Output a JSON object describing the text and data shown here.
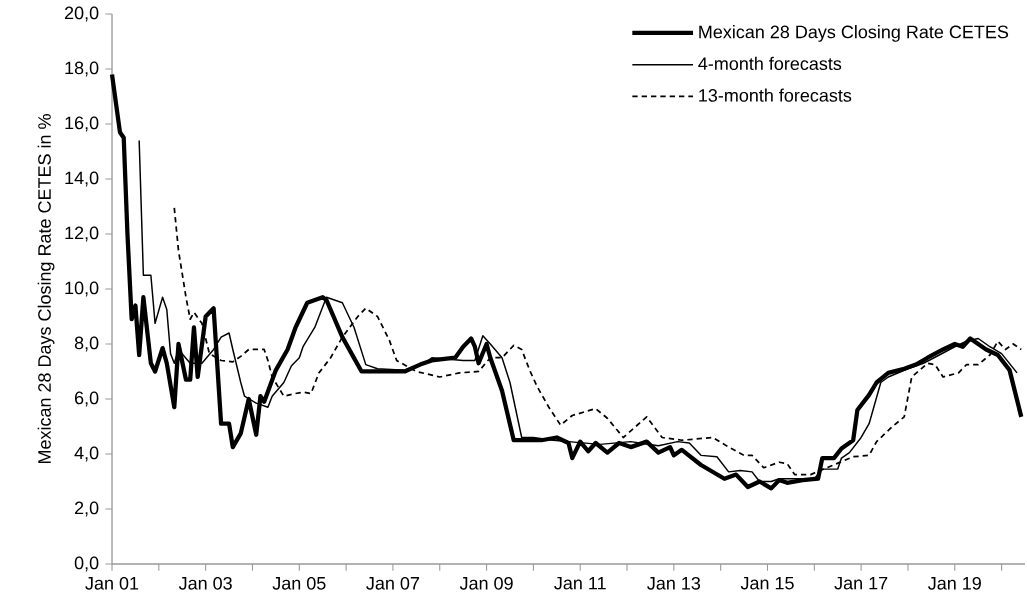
{
  "chart_data": {
    "type": "line",
    "ylabel": "Mexican 28 Days Closing Rate CETES in %",
    "xlim": [
      "2001-01",
      "2020-07"
    ],
    "xticks": [
      {
        "value": "2001-01",
        "label": "Jan 01"
      },
      {
        "value": "2002-01",
        "label": null
      },
      {
        "value": "2003-01",
        "label": "Jan 03"
      },
      {
        "value": "2004-01",
        "label": null
      },
      {
        "value": "2005-01",
        "label": "Jan 05"
      },
      {
        "value": "2006-01",
        "label": null
      },
      {
        "value": "2007-01",
        "label": "Jan 07"
      },
      {
        "value": "2008-01",
        "label": null
      },
      {
        "value": "2009-01",
        "label": "Jan 09"
      },
      {
        "value": "2010-01",
        "label": null
      },
      {
        "value": "2011-01",
        "label": "Jan 11"
      },
      {
        "value": "2012-01",
        "label": null
      },
      {
        "value": "2013-01",
        "label": "Jan 13"
      },
      {
        "value": "2014-01",
        "label": null
      },
      {
        "value": "2015-01",
        "label": "Jan 15"
      },
      {
        "value": "2016-01",
        "label": null
      },
      {
        "value": "2017-01",
        "label": "Jan 17"
      },
      {
        "value": "2018-01",
        "label": null
      },
      {
        "value": "2019-01",
        "label": "Jan 19"
      },
      {
        "value": "2020-01",
        "label": null
      }
    ],
    "ylim": [
      0,
      20
    ],
    "yticks": [
      {
        "value": 0,
        "label": "0,0"
      },
      {
        "value": 2,
        "label": "2,0"
      },
      {
        "value": 4,
        "label": "4,0"
      },
      {
        "value": 6,
        "label": "6,0"
      },
      {
        "value": 8,
        "label": "8,0"
      },
      {
        "value": 10,
        "label": "10,0"
      },
      {
        "value": 12,
        "label": "12,0"
      },
      {
        "value": 14,
        "label": "14,0"
      },
      {
        "value": 16,
        "label": "16,0"
      },
      {
        "value": 18,
        "label": "18,0"
      },
      {
        "value": 20,
        "label": "20,0"
      }
    ],
    "grid": false,
    "legend": "top right",
    "marker": "none",
    "series": [
      {
        "name": "Mexican 28 Days Closing Rate CETES",
        "color": "#000000",
        "line_style": "solid",
        "x": [
          "2001-01",
          "2001-03",
          "2001-04",
          "2001-05",
          "2001-06",
          "2001-07",
          "2001-08",
          "2001-09",
          "2001-11",
          "2001-12",
          "2002-02",
          "2002-03",
          "2002-05",
          "2002-06",
          "2002-08",
          "2002-09",
          "2002-10",
          "2002-11",
          "2003-01",
          "2003-03",
          "2003-05",
          "2003-07",
          "2003-08",
          "2003-10",
          "2003-12",
          "2004-02",
          "2004-03",
          "2004-04",
          "2004-07",
          "2004-10",
          "2004-12",
          "2005-03",
          "2005-07",
          "2005-08",
          "2005-12",
          "2006-05",
          "2007-04",
          "2007-08",
          "2007-11",
          "2008-05",
          "2008-07",
          "2008-09",
          "2008-10",
          "2008-11",
          "2009-01",
          "2009-02",
          "2009-05",
          "2009-08",
          "2010-03",
          "2010-07",
          "2010-10",
          "2010-11",
          "2011-01",
          "2011-03",
          "2011-05",
          "2011-08",
          "2011-11",
          "2012-02",
          "2012-06",
          "2012-09",
          "2012-12",
          "2013-01",
          "2013-03",
          "2013-08",
          "2013-11",
          "2014-02",
          "2014-05",
          "2014-08",
          "2014-11",
          "2015-02",
          "2015-04",
          "2015-06",
          "2015-10",
          "2016-02",
          "2016-03",
          "2016-06",
          "2016-08",
          "2016-11",
          "2016-12",
          "2017-03",
          "2017-05",
          "2017-08",
          "2017-12",
          "2018-03",
          "2018-06",
          "2018-10",
          "2019-01",
          "2019-03",
          "2019-05",
          "2019-07",
          "2019-09",
          "2019-12",
          "2020-03",
          "2020-06"
        ],
        "values": [
          17.8,
          15.7,
          15.5,
          12,
          8.9,
          9.4,
          7.6,
          9.7,
          7.3,
          7.0,
          7.85,
          7.3,
          5.7,
          8.0,
          6.7,
          6.7,
          8.6,
          6.8,
          9.0,
          9.3,
          5.1,
          5.1,
          4.25,
          4.75,
          6.0,
          4.7,
          6.1,
          5.9,
          7.05,
          7.8,
          8.6,
          9.5,
          9.7,
          9.6,
          8.25,
          7.0,
          7.0,
          7.25,
          7.4,
          7.5,
          7.9,
          8.2,
          7.9,
          7.3,
          8.0,
          7.5,
          6.3,
          4.5,
          4.5,
          4.6,
          4.4,
          3.85,
          4.45,
          4.1,
          4.4,
          4.05,
          4.4,
          4.25,
          4.45,
          4.05,
          4.25,
          3.95,
          4.15,
          3.6,
          3.35,
          3.1,
          3.25,
          2.8,
          3.0,
          2.75,
          3.05,
          2.95,
          3.05,
          3.1,
          3.85,
          3.85,
          4.2,
          4.5,
          5.6,
          6.15,
          6.6,
          6.95,
          7.1,
          7.25,
          7.5,
          7.8,
          8.0,
          7.9,
          8.2,
          8.0,
          7.8,
          7.6,
          7.05,
          5.35
        ]
      },
      {
        "name": "4-month forecasts",
        "color": "#000000",
        "line_style": "solid",
        "x": [
          "2001-08",
          "2001-09",
          "2001-11",
          "2001-12",
          "2002-02",
          "2002-03",
          "2002-04",
          "2002-05",
          "2002-06",
          "2002-09",
          "2002-12",
          "2003-03",
          "2003-05",
          "2003-07",
          "2003-08",
          "2003-10",
          "2003-11",
          "2004-02",
          "2004-05",
          "2004-06",
          "2004-09",
          "2004-11",
          "2005-01",
          "2005-02",
          "2005-05",
          "2005-08",
          "2005-12",
          "2006-03",
          "2006-06",
          "2006-09",
          "2007-04",
          "2007-09",
          "2007-11",
          "2008-07",
          "2008-10",
          "2008-12",
          "2009-02",
          "2009-05",
          "2009-07",
          "2009-10",
          "2010-01",
          "2010-06",
          "2010-10",
          "2011-06",
          "2012-02",
          "2012-09",
          "2013-02",
          "2013-05",
          "2013-08",
          "2013-12",
          "2014-03",
          "2014-06",
          "2014-09",
          "2014-11",
          "2015-02",
          "2015-04",
          "2015-09",
          "2016-01",
          "2016-03",
          "2016-07",
          "2016-08",
          "2016-10",
          "2017-01",
          "2017-03",
          "2017-06",
          "2017-08",
          "2018-01",
          "2018-05",
          "2018-09",
          "2019-01",
          "2019-04",
          "2019-07",
          "2019-10",
          "2020-01",
          "2020-05"
        ],
        "values": [
          15.4,
          10.5,
          10.5,
          8.75,
          9.7,
          9.25,
          7.65,
          7.3,
          7.8,
          7.3,
          7.3,
          7.8,
          8.25,
          8.4,
          7.8,
          6.6,
          6.1,
          5.85,
          5.7,
          6.1,
          6.6,
          7.2,
          7.5,
          7.9,
          8.6,
          9.7,
          9.5,
          8.6,
          7.25,
          7.1,
          7.05,
          7.3,
          7.5,
          7.4,
          7.4,
          8.3,
          8.0,
          7.5,
          6.6,
          4.6,
          4.6,
          4.5,
          4.45,
          4.35,
          4.45,
          4.3,
          4.45,
          4.4,
          3.95,
          3.9,
          3.35,
          3.4,
          3.35,
          3.0,
          3.0,
          3.1,
          3.1,
          3.1,
          3.45,
          3.45,
          3.85,
          4.05,
          4.6,
          5.1,
          6.6,
          6.8,
          7.1,
          7.3,
          7.6,
          7.9,
          8.1,
          8.2,
          7.9,
          7.65,
          6.95
        ]
      },
      {
        "name": "13-month forecasts",
        "color": "#000000",
        "line_style": "dashed",
        "x": [
          "2002-05",
          "2002-06",
          "2002-08",
          "2002-09",
          "2002-10",
          "2002-12",
          "2003-02",
          "2003-05",
          "2003-08",
          "2003-10",
          "2003-12",
          "2004-04",
          "2004-05",
          "2004-06",
          "2004-09",
          "2004-12",
          "2005-02",
          "2005-04",
          "2005-06",
          "2005-09",
          "2005-12",
          "2006-04",
          "2006-06",
          "2006-09",
          "2006-12",
          "2007-02",
          "2007-07",
          "2008-01",
          "2008-06",
          "2008-11",
          "2009-02",
          "2009-05",
          "2009-08",
          "2009-10",
          "2009-12",
          "2010-02",
          "2010-05",
          "2010-08",
          "2010-11",
          "2011-05",
          "2011-08",
          "2011-12",
          "2012-06",
          "2012-10",
          "2013-03",
          "2013-11",
          "2014-03",
          "2014-07",
          "2014-09",
          "2014-12",
          "2015-04",
          "2015-06",
          "2015-08",
          "2015-12",
          "2016-11",
          "2017-03",
          "2017-05",
          "2017-09",
          "2017-12",
          "2018-02",
          "2018-06",
          "2018-08",
          "2018-10",
          "2019-02",
          "2019-04",
          "2019-07",
          "2019-10",
          "2019-12",
          "2020-02",
          "2020-04",
          "2020-06"
        ],
        "values": [
          12.95,
          11.4,
          9.7,
          8.9,
          9.15,
          8.75,
          7.65,
          7.4,
          7.35,
          7.55,
          7.8,
          7.8,
          7.4,
          6.8,
          6.1,
          6.2,
          6.25,
          6.2,
          6.95,
          7.5,
          8.25,
          9.0,
          9.3,
          9.0,
          8.15,
          7.4,
          7.0,
          6.8,
          6.95,
          7.0,
          7.5,
          7.5,
          7.95,
          7.8,
          7.05,
          6.45,
          5.7,
          5.05,
          5.4,
          5.65,
          5.3,
          4.6,
          5.35,
          4.6,
          4.5,
          4.6,
          4.25,
          3.95,
          3.95,
          3.5,
          3.7,
          3.65,
          3.25,
          3.25,
          3.9,
          3.95,
          4.45,
          5.0,
          5.35,
          6.8,
          7.3,
          7.25,
          6.8,
          6.95,
          7.25,
          7.25,
          7.6,
          8.1,
          7.8,
          8.0,
          7.8
        ]
      }
    ]
  }
}
